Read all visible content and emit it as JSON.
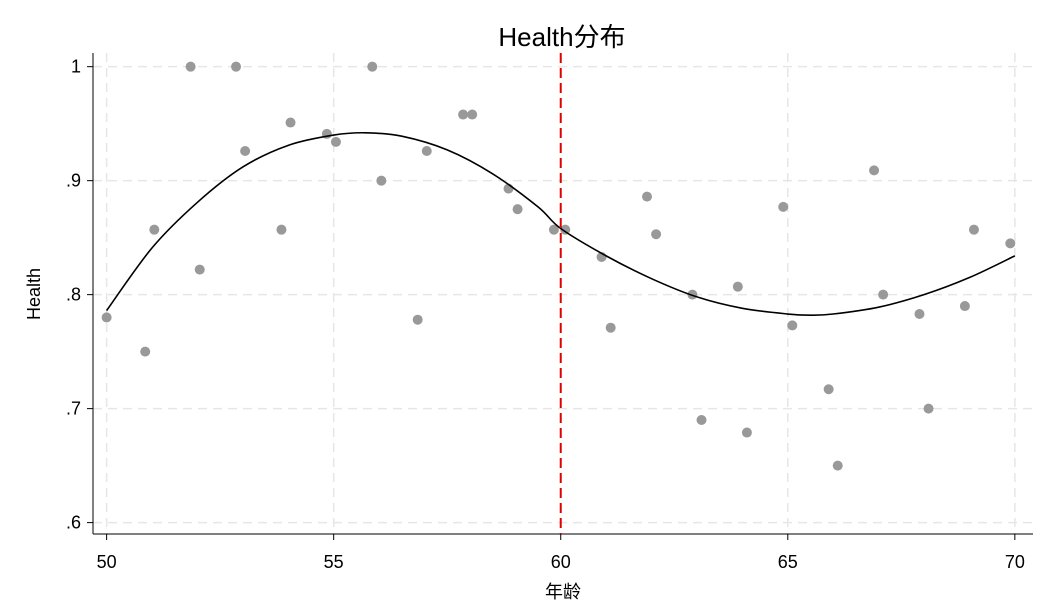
{
  "chart_data": {
    "type": "scatter",
    "title": "Health分布",
    "xlabel": "年龄",
    "ylabel": "Health",
    "xlim": [
      49.7,
      70.4
    ],
    "ylim": [
      0.59,
      1.012
    ],
    "x_ticks": [
      {
        "value": 50,
        "label": "50"
      },
      {
        "value": 55,
        "label": "55"
      },
      {
        "value": 60,
        "label": "60"
      },
      {
        "value": 65,
        "label": "65"
      },
      {
        "value": 70,
        "label": "70"
      }
    ],
    "y_ticks": [
      {
        "value": 0.6,
        "label": ".6"
      },
      {
        "value": 0.7,
        "label": ".7"
      },
      {
        "value": 0.8,
        "label": ".8"
      },
      {
        "value": 0.9,
        "label": ".9"
      },
      {
        "value": 1.0,
        "label": "1"
      }
    ],
    "grid": true,
    "reference_line": {
      "x": 60,
      "color": "#e00000",
      "style": "dashed"
    },
    "series": [
      {
        "kind": "points",
        "color": "#999999",
        "points": [
          {
            "x": 50.0,
            "y": 0.78
          },
          {
            "x": 50.85,
            "y": 0.75
          },
          {
            "x": 51.05,
            "y": 0.857
          },
          {
            "x": 51.85,
            "y": 1.0
          },
          {
            "x": 52.05,
            "y": 0.822
          },
          {
            "x": 52.85,
            "y": 1.0
          },
          {
            "x": 53.05,
            "y": 0.926
          },
          {
            "x": 53.85,
            "y": 0.857
          },
          {
            "x": 54.05,
            "y": 0.951
          },
          {
            "x": 54.85,
            "y": 0.941
          },
          {
            "x": 55.05,
            "y": 0.934
          },
          {
            "x": 55.85,
            "y": 1.0
          },
          {
            "x": 56.05,
            "y": 0.9
          },
          {
            "x": 56.85,
            "y": 0.778
          },
          {
            "x": 57.05,
            "y": 0.926
          },
          {
            "x": 57.85,
            "y": 0.958
          },
          {
            "x": 58.05,
            "y": 0.958
          },
          {
            "x": 58.85,
            "y": 0.893
          },
          {
            "x": 59.05,
            "y": 0.875
          },
          {
            "x": 59.85,
            "y": 0.857
          },
          {
            "x": 60.1,
            "y": 0.857
          },
          {
            "x": 60.9,
            "y": 0.833
          },
          {
            "x": 61.1,
            "y": 0.771
          },
          {
            "x": 61.9,
            "y": 0.886
          },
          {
            "x": 62.1,
            "y": 0.853
          },
          {
            "x": 62.9,
            "y": 0.8
          },
          {
            "x": 63.1,
            "y": 0.69
          },
          {
            "x": 63.9,
            "y": 0.807
          },
          {
            "x": 64.1,
            "y": 0.679
          },
          {
            "x": 64.9,
            "y": 0.877
          },
          {
            "x": 65.1,
            "y": 0.773
          },
          {
            "x": 65.9,
            "y": 0.717
          },
          {
            "x": 66.1,
            "y": 0.65
          },
          {
            "x": 66.9,
            "y": 0.909
          },
          {
            "x": 67.1,
            "y": 0.8
          },
          {
            "x": 67.9,
            "y": 0.783
          },
          {
            "x": 68.1,
            "y": 0.7
          },
          {
            "x": 68.9,
            "y": 0.79
          },
          {
            "x": 69.1,
            "y": 0.857
          },
          {
            "x": 69.9,
            "y": 0.845
          }
        ]
      },
      {
        "kind": "fit-line",
        "color": "#000000",
        "points": [
          {
            "x": 50.0,
            "y": 0.786
          },
          {
            "x": 51.0,
            "y": 0.841
          },
          {
            "x": 52.0,
            "y": 0.881
          },
          {
            "x": 53.0,
            "y": 0.912
          },
          {
            "x": 54.0,
            "y": 0.931
          },
          {
            "x": 55.0,
            "y": 0.94
          },
          {
            "x": 55.7,
            "y": 0.942
          },
          {
            "x": 56.5,
            "y": 0.939
          },
          {
            "x": 57.5,
            "y": 0.927
          },
          {
            "x": 58.5,
            "y": 0.906
          },
          {
            "x": 59.5,
            "y": 0.877
          },
          {
            "x": 60.0,
            "y": 0.858
          },
          {
            "x": 61.0,
            "y": 0.834
          },
          {
            "x": 62.0,
            "y": 0.814
          },
          {
            "x": 63.0,
            "y": 0.798
          },
          {
            "x": 64.0,
            "y": 0.788
          },
          {
            "x": 65.0,
            "y": 0.783
          },
          {
            "x": 65.5,
            "y": 0.782
          },
          {
            "x": 66.0,
            "y": 0.783
          },
          {
            "x": 67.0,
            "y": 0.789
          },
          {
            "x": 68.0,
            "y": 0.8
          },
          {
            "x": 69.0,
            "y": 0.815
          },
          {
            "x": 70.0,
            "y": 0.834
          }
        ]
      }
    ]
  }
}
